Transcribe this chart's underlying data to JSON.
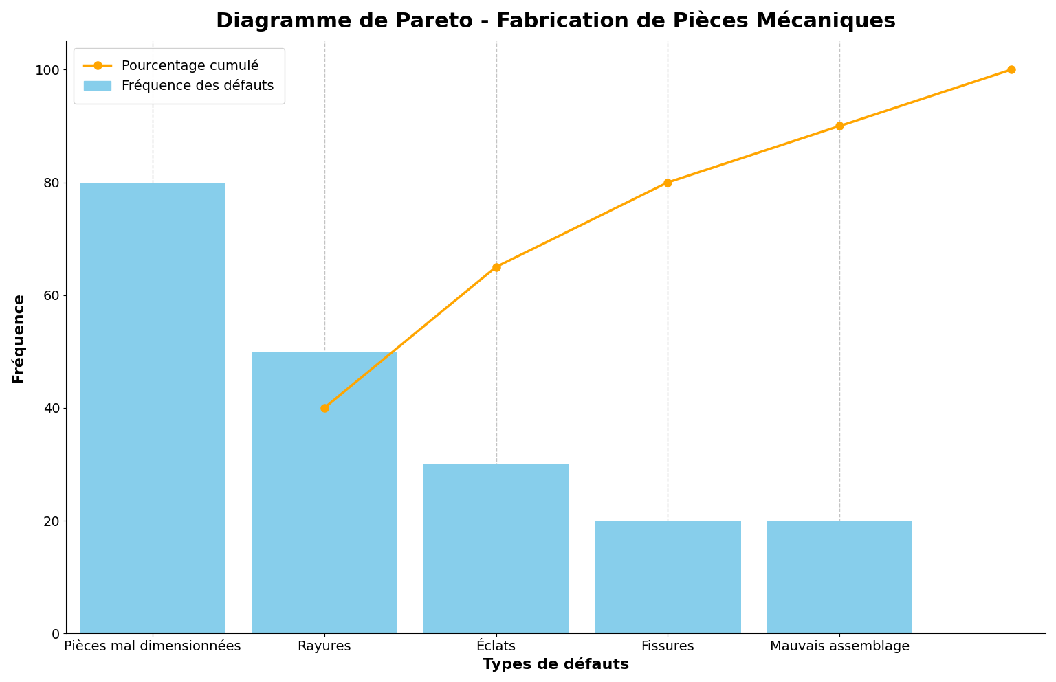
{
  "title": "Diagramme de Pareto - Fabrication de Pièces Mécaniques",
  "categories": [
    "Pièces mal dimensionnées",
    "Rayures",
    "Éclats",
    "Fissures",
    "Mauvais assemblage"
  ],
  "frequencies": [
    80,
    50,
    30,
    20,
    20
  ],
  "cumulative_pct": [
    40,
    65,
    80,
    90,
    100
  ],
  "bar_color": "#87CEEB",
  "line_color": "#FFA500",
  "xlabel": "Types de défauts",
  "ylabel": "Fréquence",
  "legend_line": "Pourcentage cumulé",
  "legend_bar": "Fréquence des défauts",
  "ylim": [
    0,
    105
  ],
  "title_fontsize": 22,
  "label_fontsize": 16,
  "tick_fontsize": 14,
  "legend_fontsize": 14,
  "background_color": "#ffffff",
  "grid_color": "#aaaaaa",
  "line_width": 2.5,
  "marker": "o",
  "marker_size": 8,
  "bar_width": 0.85
}
